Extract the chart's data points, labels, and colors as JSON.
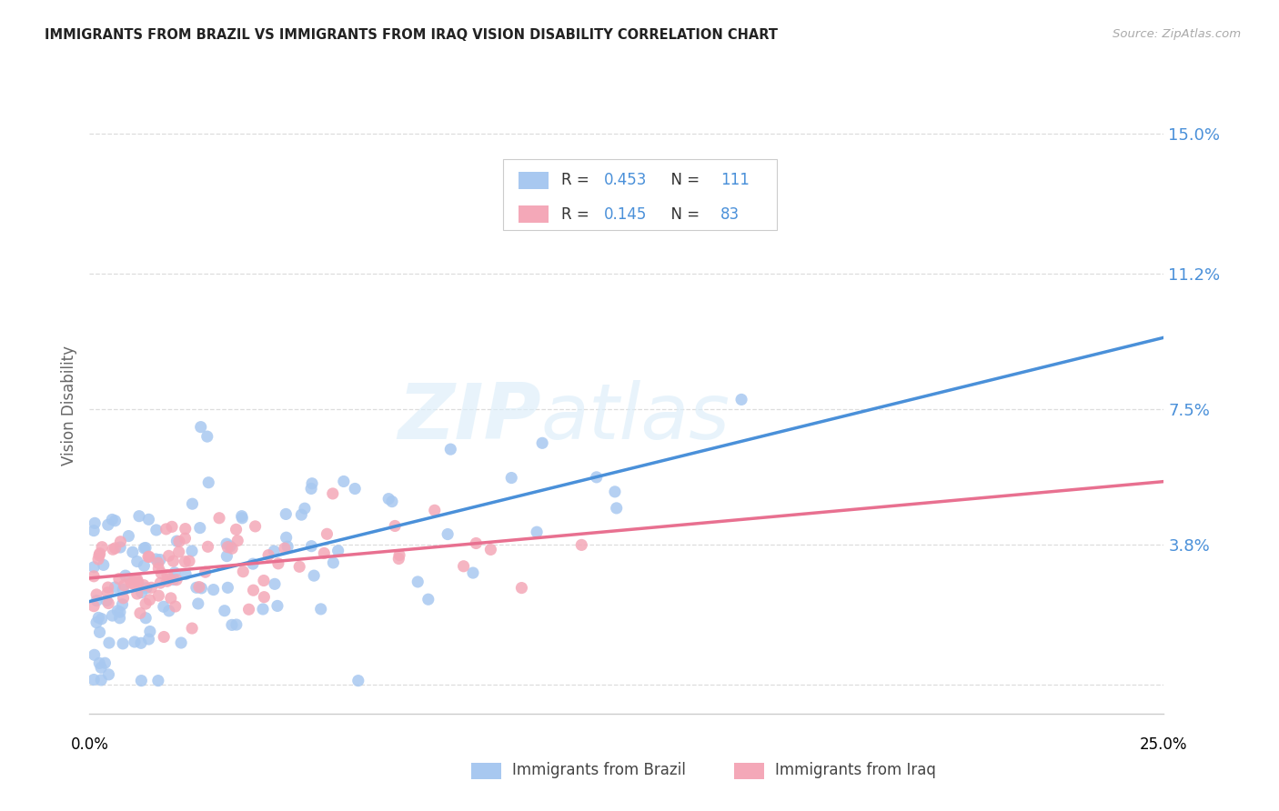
{
  "title": "IMMIGRANTS FROM BRAZIL VS IMMIGRANTS FROM IRAQ VISION DISABILITY CORRELATION CHART",
  "source": "Source: ZipAtlas.com",
  "ylabel": "Vision Disability",
  "brazil_R": 0.453,
  "brazil_N": 111,
  "iraq_R": 0.145,
  "iraq_N": 83,
  "brazil_color": "#a8c8f0",
  "iraq_color": "#f4a8b8",
  "brazil_line_color": "#4a90d9",
  "iraq_line_color": "#e87090",
  "xlim": [
    0.0,
    0.25
  ],
  "ylim": [
    -0.008,
    0.16
  ],
  "ytick_vals": [
    0.0,
    0.038,
    0.075,
    0.112,
    0.15
  ],
  "ytick_labels": [
    "",
    "3.8%",
    "7.5%",
    "11.2%",
    "15.0%"
  ],
  "brazil_seed": 42,
  "iraq_seed": 7,
  "background_color": "#ffffff",
  "grid_color": "#dddddd",
  "watermark_color": "#dceefa",
  "watermark_alpha": 0.65
}
